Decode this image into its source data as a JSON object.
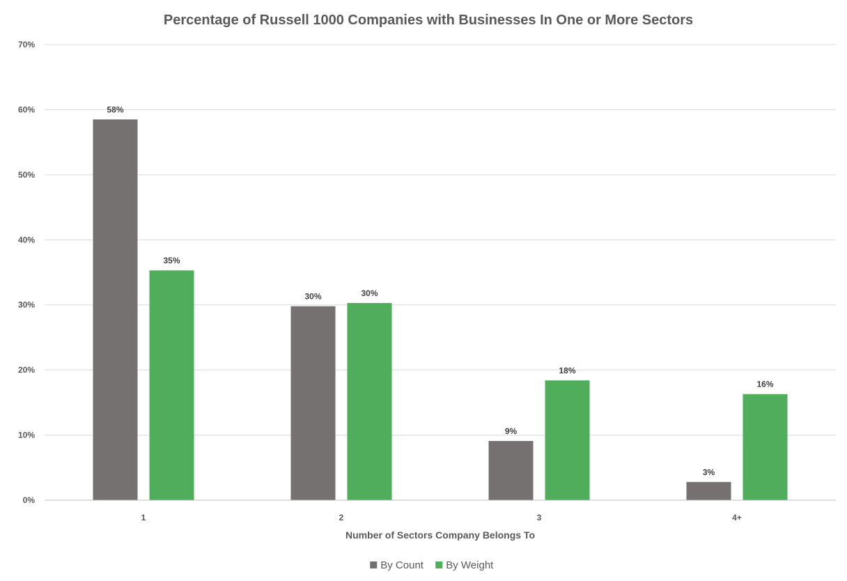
{
  "chart_data": {
    "type": "bar",
    "title": "Percentage of Russell 1000 Companies with Businesses In One or More Sectors",
    "xlabel": "Number of Sectors Company Belongs To",
    "ylabel": "",
    "categories": [
      "1",
      "2",
      "3",
      "4+"
    ],
    "ylim": [
      0,
      70
    ],
    "yticks": [
      0,
      10,
      20,
      30,
      40,
      50,
      60,
      70
    ],
    "ytick_labels": [
      "0%",
      "10%",
      "20%",
      "30%",
      "40%",
      "50%",
      "60%",
      "70%"
    ],
    "grid": true,
    "legend_position": "bottom",
    "series": [
      {
        "name": "By Count",
        "color": "#757171",
        "values": [
          58.5,
          29.8,
          9.1,
          2.8
        ],
        "labels": [
          "58%",
          "30%",
          "9%",
          "3%"
        ]
      },
      {
        "name": "By Weight",
        "color": "#4fad5b",
        "values": [
          35.3,
          30.3,
          18.4,
          16.3
        ],
        "labels": [
          "35%",
          "30%",
          "18%",
          "16%"
        ]
      }
    ]
  }
}
